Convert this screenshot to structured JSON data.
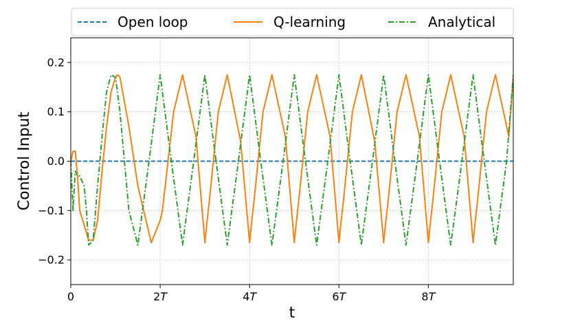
{
  "chart_data": {
    "type": "line",
    "title": "",
    "xlabel": "t",
    "ylabel": "Control Input",
    "xlim": [
      0,
      9.9
    ],
    "ylim": [
      -0.25,
      0.25
    ],
    "period": 1.0,
    "x_ticks": [
      {
        "value": 0,
        "label": "0"
      },
      {
        "value": 2,
        "label": "2T"
      },
      {
        "value": 4,
        "label": "4T"
      },
      {
        "value": 6,
        "label": "6T"
      },
      {
        "value": 8,
        "label": "8T"
      }
    ],
    "y_ticks": [
      {
        "value": 0.2,
        "label": "0.2"
      },
      {
        "value": 0.1,
        "label": "0.1"
      },
      {
        "value": 0.0,
        "label": "0.0"
      },
      {
        "value": -0.1,
        "label": "−0.1"
      },
      {
        "value": -0.2,
        "label": "−0.2"
      }
    ],
    "grid": true,
    "legend_position": "top",
    "series": [
      {
        "name": "Open loop",
        "color": "#1f77b4",
        "style": "dashed",
        "x": [
          0,
          9.9
        ],
        "y": [
          0,
          0
        ]
      },
      {
        "name": "Q-learning",
        "color": "#ff7f0e",
        "style": "solid",
        "x": [
          0,
          0.05,
          0.1,
          0.15,
          0.2,
          0.3,
          0.4,
          0.5,
          0.6,
          0.7,
          0.8,
          0.9,
          1.0,
          1.05,
          1.1,
          1.3,
          1.5,
          1.8,
          2.0,
          2.05,
          2.1,
          2.3,
          2.5,
          2.8,
          3.0,
          3.05,
          3.1,
          3.3,
          3.5,
          3.8,
          4.0,
          4.05,
          4.1,
          4.3,
          4.5,
          4.8,
          5.0,
          5.05,
          5.1,
          5.3,
          5.5,
          5.8,
          6.0,
          6.05,
          6.1,
          6.3,
          6.5,
          6.8,
          7.0,
          7.05,
          7.1,
          7.3,
          7.5,
          7.8,
          8.0,
          8.05,
          8.1,
          8.3,
          8.5,
          8.8,
          9.0,
          9.05,
          9.1,
          9.3,
          9.5,
          9.8,
          9.9
        ],
        "y": [
          0.0,
          0.02,
          0.02,
          -0.03,
          -0.1,
          -0.13,
          -0.16,
          -0.16,
          -0.12,
          -0.02,
          0.07,
          0.14,
          0.17,
          0.175,
          0.17,
          0.07,
          -0.05,
          -0.165,
          -0.12,
          -0.1,
          -0.06,
          0.1,
          0.175,
          0.05,
          -0.165,
          -0.12,
          -0.08,
          0.1,
          0.175,
          0.04,
          -0.165,
          -0.12,
          -0.08,
          0.1,
          0.175,
          0.05,
          -0.165,
          -0.12,
          -0.08,
          0.1,
          0.175,
          0.05,
          -0.165,
          -0.12,
          -0.08,
          0.1,
          0.175,
          0.04,
          -0.165,
          -0.12,
          -0.08,
          0.1,
          0.175,
          0.05,
          -0.165,
          -0.12,
          -0.08,
          0.1,
          0.175,
          0.05,
          -0.165,
          -0.12,
          -0.08,
          0.1,
          0.175,
          0.05,
          0.17
        ]
      },
      {
        "name": "Analytical",
        "color": "#2ca02c",
        "style": "dashdot",
        "x": [
          0,
          0.05,
          0.1,
          0.15,
          0.2,
          0.3,
          0.35,
          0.4,
          0.5,
          0.6,
          0.7,
          0.8,
          0.9,
          1.0,
          1.1,
          1.2,
          1.3,
          1.5,
          1.75,
          2.0,
          2.25,
          2.5,
          2.75,
          3.0,
          3.25,
          3.5,
          3.75,
          4.0,
          4.25,
          4.5,
          4.75,
          5.0,
          5.25,
          5.5,
          5.75,
          6.0,
          6.25,
          6.5,
          6.75,
          7.0,
          7.25,
          7.5,
          7.75,
          8.0,
          8.25,
          8.5,
          8.75,
          9.0,
          9.25,
          9.5,
          9.75,
          9.9
        ],
        "y": [
          0.0,
          -0.1,
          -0.02,
          -0.03,
          -0.03,
          -0.05,
          -0.1,
          -0.17,
          -0.16,
          -0.05,
          0.05,
          0.14,
          0.175,
          0.17,
          0.1,
          0.0,
          -0.1,
          -0.17,
          0.0,
          0.175,
          0.0,
          -0.17,
          0.0,
          0.175,
          0.0,
          -0.17,
          0.0,
          0.175,
          0.0,
          -0.17,
          0.0,
          0.175,
          0.0,
          -0.17,
          0.0,
          0.175,
          0.0,
          -0.17,
          0.0,
          0.175,
          0.0,
          -0.17,
          0.0,
          0.175,
          0.0,
          -0.17,
          0.0,
          0.175,
          0.0,
          -0.17,
          0.0,
          0.175
        ]
      }
    ]
  }
}
